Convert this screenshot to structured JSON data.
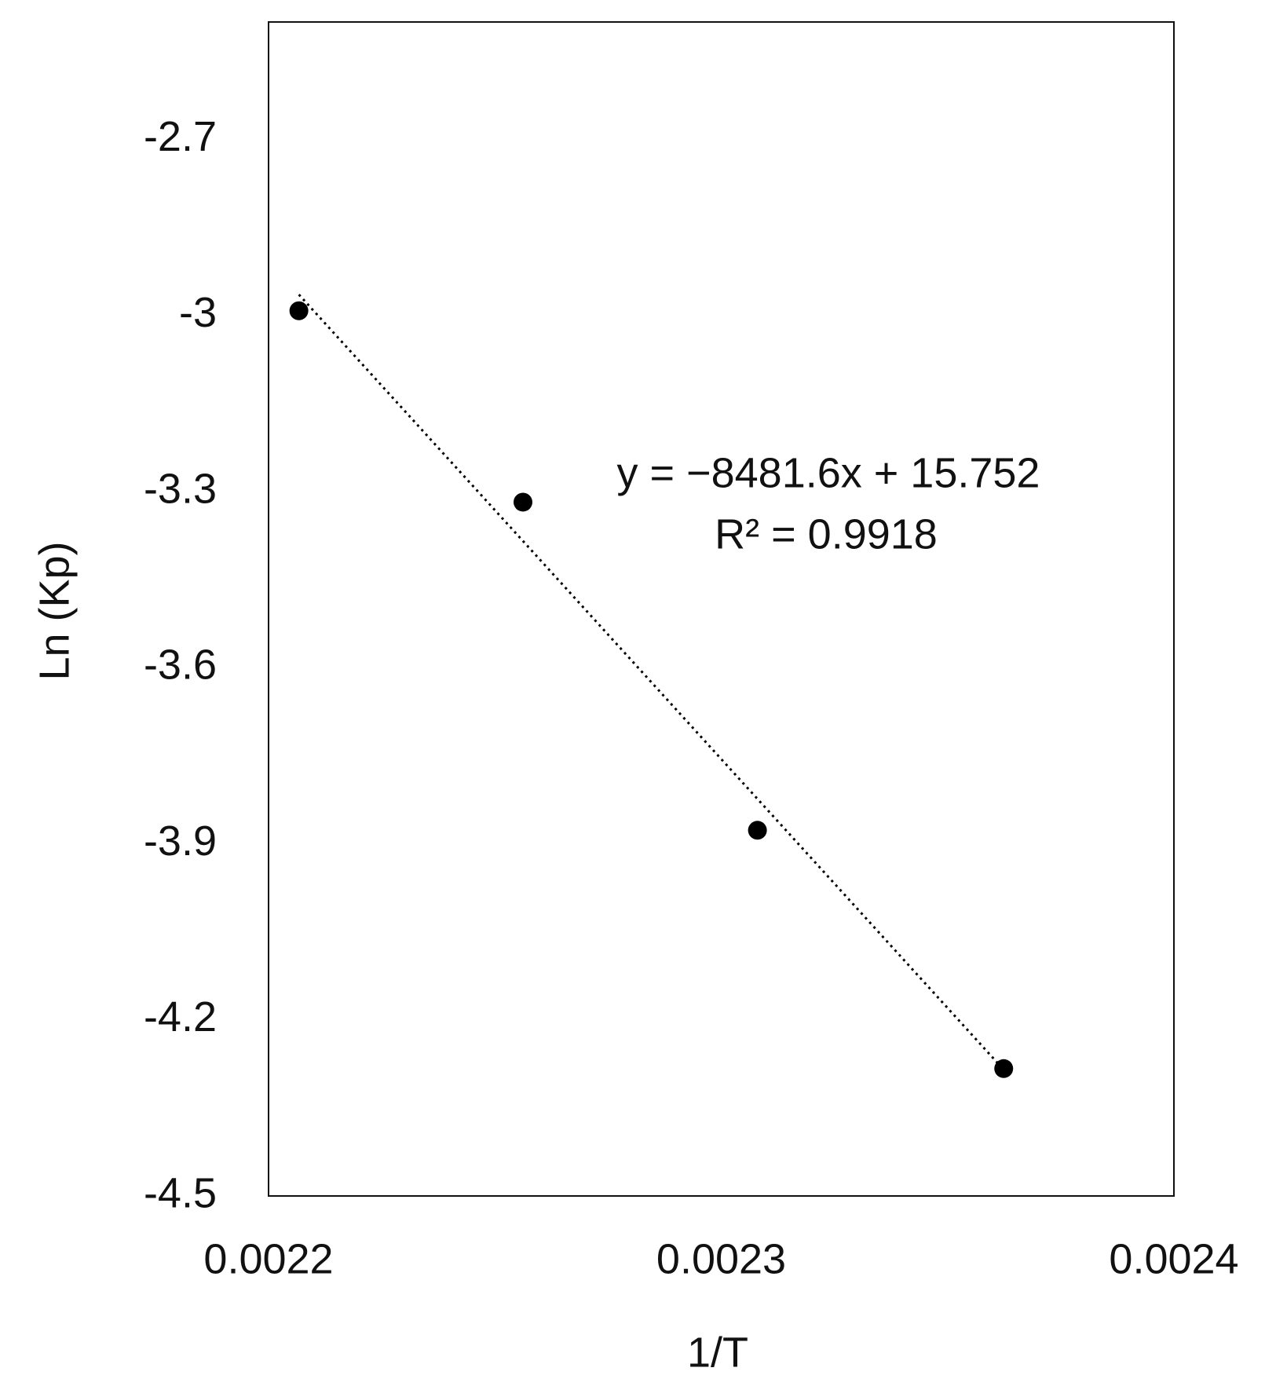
{
  "chart_data": {
    "type": "scatter",
    "x_label": "1/T",
    "y_label": "Ln (Kp)",
    "series": [
      {
        "name": null,
        "color": "#000000",
        "x": [
          0.0022067,
          0.0022562,
          0.002308,
          0.0023624
        ],
        "values": [
          -2.992,
          -3.318,
          -3.877,
          -4.283
        ]
      }
    ],
    "xlim": [
      0.0022,
      0.0024
    ],
    "xticks": [
      0.0022,
      0.0023,
      0.0024
    ],
    "ylim": [
      -4.5,
      -2.5
    ],
    "yticks": [
      -2.7,
      -3,
      -3.3,
      -3.6,
      -3.9,
      -4.2,
      -4.5
    ],
    "grid": false,
    "trendline": {
      "slope": -8481.6,
      "intercept": 15.752,
      "style": "dotted",
      "color": "#000000",
      "equation": "y = −8481.6x + 15.752",
      "r_squared": "R² = 0.9918"
    }
  }
}
